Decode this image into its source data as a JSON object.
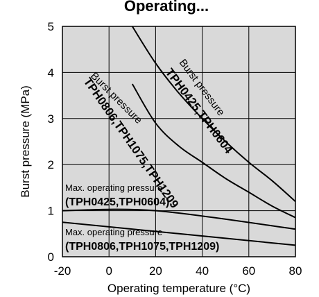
{
  "chart_data": {
    "type": "line",
    "title": "Operating...",
    "xlabel": "Operating temperature  (°C)",
    "ylabel": "Burst pressure  (MPa)",
    "xlim": [
      -20,
      80
    ],
    "ylim": [
      0,
      5
    ],
    "x_ticks": [
      -20,
      0,
      20,
      40,
      60,
      80
    ],
    "y_ticks": [
      0,
      1,
      2,
      3,
      4,
      5
    ],
    "x_tick_labels": [
      "-20",
      "0",
      "20",
      "40",
      "60",
      "80"
    ],
    "y_tick_labels": [
      "0",
      "1",
      "2",
      "3",
      "4",
      "5"
    ],
    "grid": true,
    "background": "#d9d9d9",
    "series": [
      {
        "x": [
          10,
          20,
          30,
          40,
          50,
          60,
          70,
          80
        ],
        "y": [
          5.0,
          4.2,
          3.55,
          3.0,
          2.5,
          2.05,
          1.65,
          1.2
        ]
      },
      {
        "x": [
          10,
          20,
          30,
          40,
          50,
          60,
          70,
          80
        ],
        "y": [
          3.75,
          2.9,
          2.4,
          2.05,
          1.7,
          1.4,
          1.1,
          0.85
        ]
      },
      {
        "x": [
          -20,
          20,
          80
        ],
        "y": [
          1.0,
          1.0,
          0.6
        ]
      },
      {
        "x": [
          -20,
          80
        ],
        "y": [
          0.75,
          0.25
        ]
      }
    ],
    "annotations": {
      "burst_upper_a": "Burst pressure",
      "burst_upper_b": "TPH0425,TPH0604",
      "burst_lower_a": "Burst pressure",
      "burst_lower_b": "TPH0806,TPH1075,TPH1209",
      "maxop_upper_a": "Max. operating pressure",
      "maxop_upper_b": "(TPH0425,TPH0604)",
      "maxop_lower_a": "Max. operating pressure",
      "maxop_lower_b": "(TPH0806,TPH1075,TPH1209)"
    }
  }
}
